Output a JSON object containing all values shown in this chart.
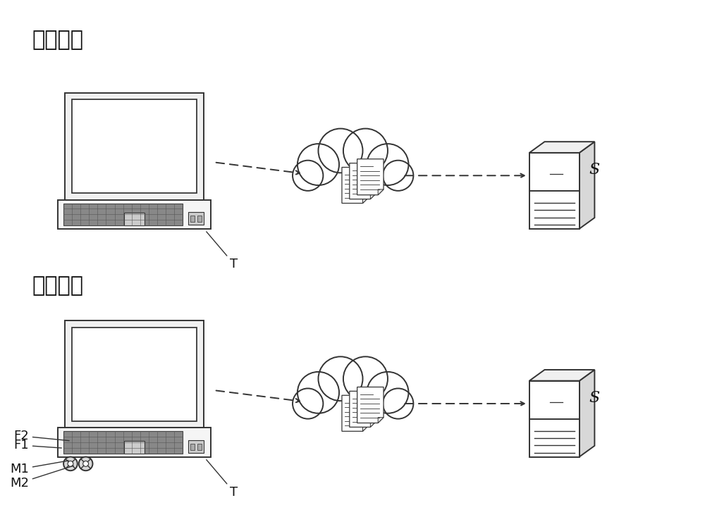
{
  "background_color": "#ffffff",
  "section1_label": "训练阶段",
  "section2_label": "预测阶段",
  "label_S": "S",
  "label_T": "T",
  "label_F1": "F1",
  "label_F2": "F2",
  "label_M1": "M1",
  "label_M2": "M2",
  "line_color": "#333333",
  "text_color": "#111111",
  "font_size_section": 22,
  "font_size_label": 13
}
